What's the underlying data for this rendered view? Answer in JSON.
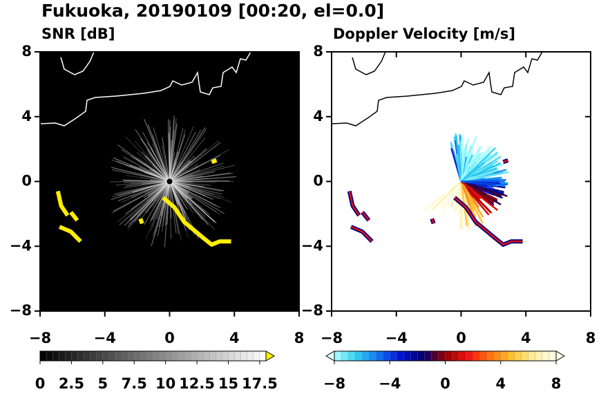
{
  "title": "Fukuoka, 20190109 [00:20, el=0.0]",
  "chart_data": [
    {
      "type": "radar-ppi",
      "subtitle": "SNR [dB]",
      "background": "#000000",
      "coast_color": "#ffffff",
      "xlim": [
        -8,
        8
      ],
      "ylim": [
        -8,
        8
      ],
      "xticks": [
        {
          "value": -8,
          "label": "−8"
        },
        {
          "value": -4,
          "label": "−4"
        },
        0,
        4,
        8
      ],
      "yticks": [
        {
          "value": -8,
          "label": "−8"
        },
        {
          "value": -4,
          "label": "−4"
        },
        0,
        4,
        8
      ],
      "colorbar": {
        "lim": [
          0,
          18
        ],
        "ticks": [
          0,
          2.5,
          5,
          7.5,
          10,
          12.5,
          15,
          17.5
        ],
        "colors": [
          "#000000",
          "#ffffff"
        ],
        "over_color": "#ffee00"
      }
    },
    {
      "type": "radar-velocity",
      "subtitle": "Doppler Velocity [m/s]",
      "background": "#ffffff",
      "coast_color": "#000000",
      "xlim": [
        -8,
        8
      ],
      "ylim": [
        -8,
        8
      ],
      "xticks": [
        {
          "value": -8,
          "label": "−8"
        },
        {
          "value": -4,
          "label": "−4"
        },
        0,
        4,
        8
      ],
      "yticks": [
        {
          "value": -8,
          "label": "−8"
        },
        {
          "value": -4,
          "label": "−4"
        },
        0,
        4,
        8
      ],
      "colorbar": {
        "lim": [
          -8,
          8
        ],
        "ticks": [
          {
            "value": -8,
            "label": "−8"
          },
          {
            "value": -4,
            "label": "−4"
          },
          0,
          4,
          8
        ],
        "colors": [
          "#b0ffff",
          "#30d0f0",
          "#1070f0",
          "#0010d0",
          "#000070",
          "#900000",
          "#f01010",
          "#ff7010",
          "#ffc030",
          "#fff0a0",
          "#fffff0"
        ],
        "under_color": "#d8ffff",
        "over_color": "#ffffe8"
      }
    }
  ]
}
